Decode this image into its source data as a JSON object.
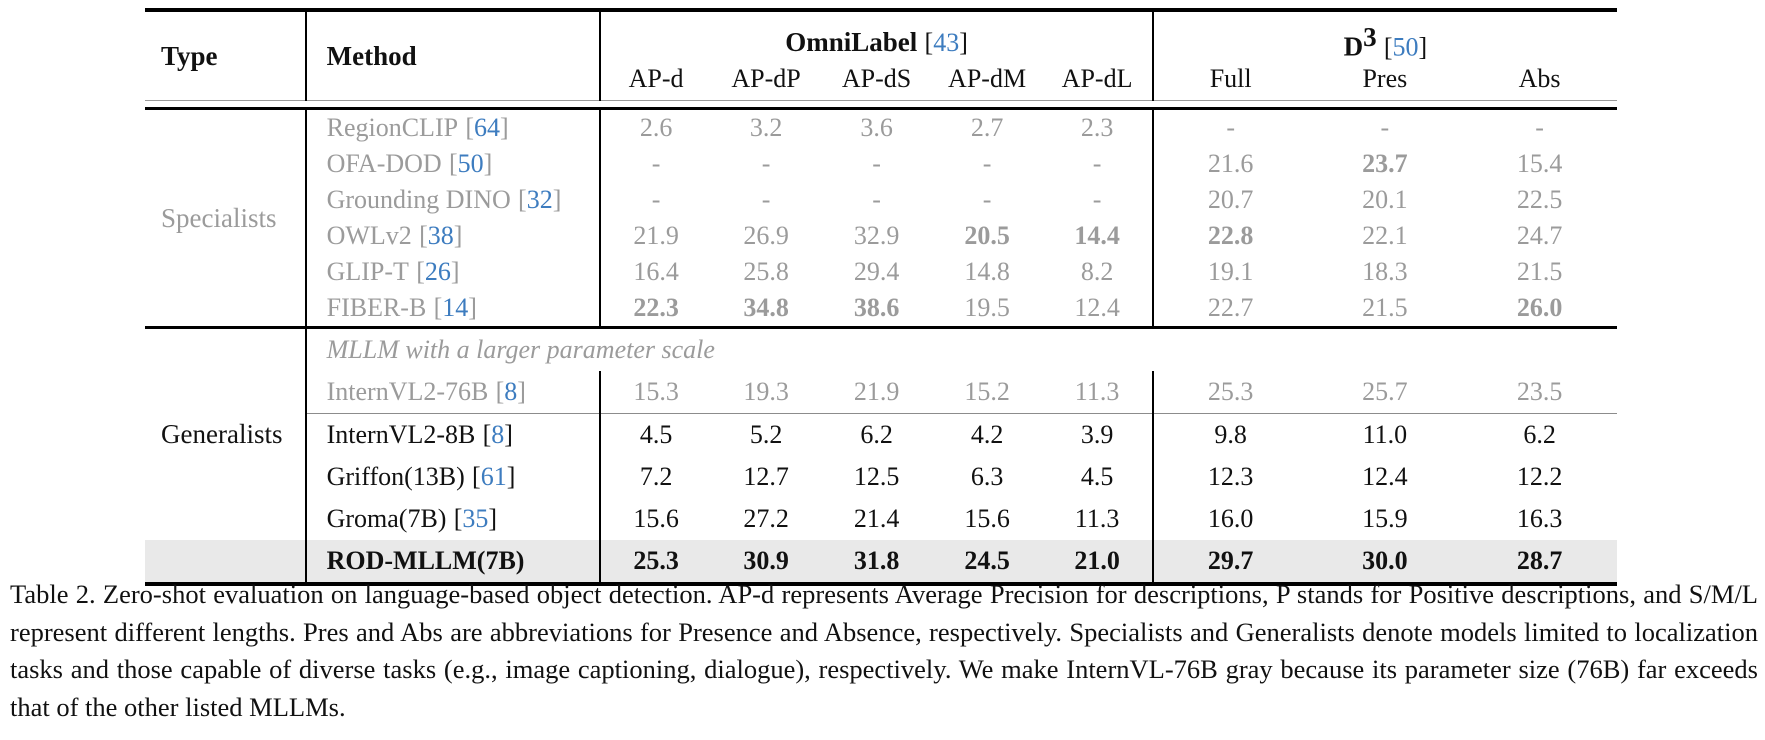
{
  "colors": {
    "citation": "#3d7cbf",
    "muted_gray": "#9b9b9b",
    "highlight_row": "#e9e9e9"
  },
  "sym": {
    "lb": "[",
    "rb": "]"
  },
  "header": {
    "type": "Type",
    "method": "Method",
    "omnilabel": "OmniLabel",
    "omnilabel_cite": "43",
    "d3_base": "D",
    "d3_sup": "3",
    "d3_cite": "50",
    "subcols": [
      "AP-d",
      "AP-dP",
      "AP-dS",
      "AP-dM",
      "AP-dL",
      "Full",
      "Pres",
      "Abs"
    ]
  },
  "sections": {
    "specialists": "Specialists",
    "generalists": "Generalists",
    "mllm_note": "MLLM with a larger parameter scale"
  },
  "rows": [
    {
      "name": "RegionCLIP",
      "cite": "64",
      "v": [
        "2.6",
        "3.2",
        "3.6",
        "2.7",
        "2.3",
        "-",
        "-",
        "-"
      ]
    },
    {
      "name": "OFA-DOD",
      "cite": "50",
      "v": [
        "-",
        "-",
        "-",
        "-",
        "-",
        "21.6",
        "23.7",
        "15.4"
      ]
    },
    {
      "name": "Grounding DINO",
      "cite": "32",
      "v": [
        "-",
        "-",
        "-",
        "-",
        "-",
        "20.7",
        "20.1",
        "22.5"
      ]
    },
    {
      "name": "OWLv2",
      "cite": "38",
      "v": [
        "21.9",
        "26.9",
        "32.9",
        "20.5",
        "14.4",
        "22.8",
        "22.1",
        "24.7"
      ]
    },
    {
      "name": "GLIP-T",
      "cite": "26",
      "v": [
        "16.4",
        "25.8",
        "29.4",
        "14.8",
        "8.2",
        "19.1",
        "18.3",
        "21.5"
      ]
    },
    {
      "name": "FIBER-B",
      "cite": "14",
      "v": [
        "22.3",
        "34.8",
        "38.6",
        "19.5",
        "12.4",
        "22.7",
        "21.5",
        "26.0"
      ]
    },
    {
      "name": "InternVL2-76B",
      "cite": "8",
      "v": [
        "15.3",
        "19.3",
        "21.9",
        "15.2",
        "11.3",
        "25.3",
        "25.7",
        "23.5"
      ]
    },
    {
      "name": "InternVL2-8B",
      "cite": "8",
      "v": [
        "4.5",
        "5.2",
        "6.2",
        "4.2",
        "3.9",
        "9.8",
        "11.0",
        "6.2"
      ]
    },
    {
      "name": "Griffon(13B)",
      "cite": "61",
      "v": [
        "7.2",
        "12.7",
        "12.5",
        "6.3",
        "4.5",
        "12.3",
        "12.4",
        "12.2"
      ]
    },
    {
      "name": "Groma(7B)",
      "cite": "35",
      "v": [
        "15.6",
        "27.2",
        "21.4",
        "15.6",
        "11.3",
        "16.0",
        "15.9",
        "16.3"
      ]
    },
    {
      "name": "ROD-MLLM(7B)",
      "cite": null,
      "v": [
        "25.3",
        "30.9",
        "31.8",
        "24.5",
        "21.0",
        "29.7",
        "30.0",
        "28.7"
      ]
    }
  ],
  "caption": "Table 2. Zero-shot evaluation on language-based object detection. AP-d represents Average Precision for descriptions, P stands for Positive descriptions, and S/M/L represent different lengths. Pres and Abs are abbreviations for Presence and Absence, respectively. Specialists and Generalists denote models limited to localization tasks and those capable of diverse tasks (e.g., image captioning, dialogue), respectively. We make InternVL-76B gray because its parameter size (76B) far exceeds that of the other listed MLLMs."
}
